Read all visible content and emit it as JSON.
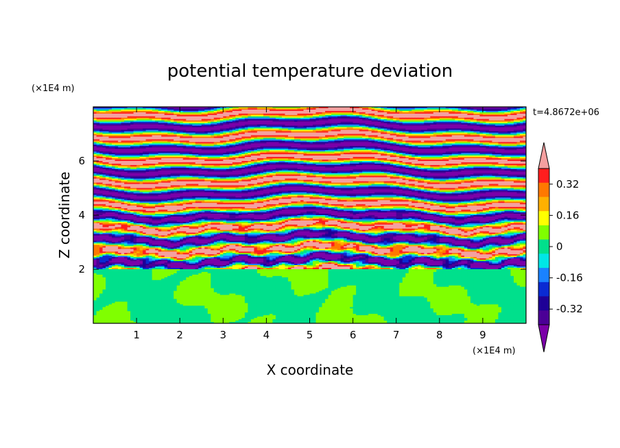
{
  "chart_data": {
    "type": "heatmap",
    "title": "potential temperature deviation",
    "xlabel": "X coordinate",
    "ylabel": "Z coordinate",
    "x_unit": "(×1E4 m)",
    "y_unit": "(×1E4 m)",
    "time_label": "t=4.8672e+06",
    "xlim": [
      0,
      10
    ],
    "ylim": [
      0,
      8
    ],
    "x_ticks": [
      "1",
      "2",
      "3",
      "4",
      "5",
      "6",
      "7",
      "8",
      "9"
    ],
    "y_ticks": [
      "2",
      "4",
      "6"
    ],
    "colorbar": {
      "levels": [
        -0.48,
        -0.4,
        -0.32,
        -0.24,
        -0.16,
        -0.08,
        0,
        0.08,
        0.16,
        0.24,
        0.32,
        0.4,
        0.48
      ],
      "labels": [
        "0.32",
        "0.16",
        "0",
        "-0.16",
        "-0.32"
      ],
      "label_values": [
        0.32,
        0.16,
        0,
        -0.16,
        -0.32
      ],
      "colors": [
        "#7b00a8",
        "#4b0096",
        "#1e0096",
        "#0a2ad2",
        "#1a82ff",
        "#00e6e6",
        "#00e08c",
        "#80ff00",
        "#ffff00",
        "#ffb000",
        "#ff7800",
        "#ff1e1e",
        "#f5a0a0"
      ],
      "extend": "both"
    },
    "grid": false
  }
}
